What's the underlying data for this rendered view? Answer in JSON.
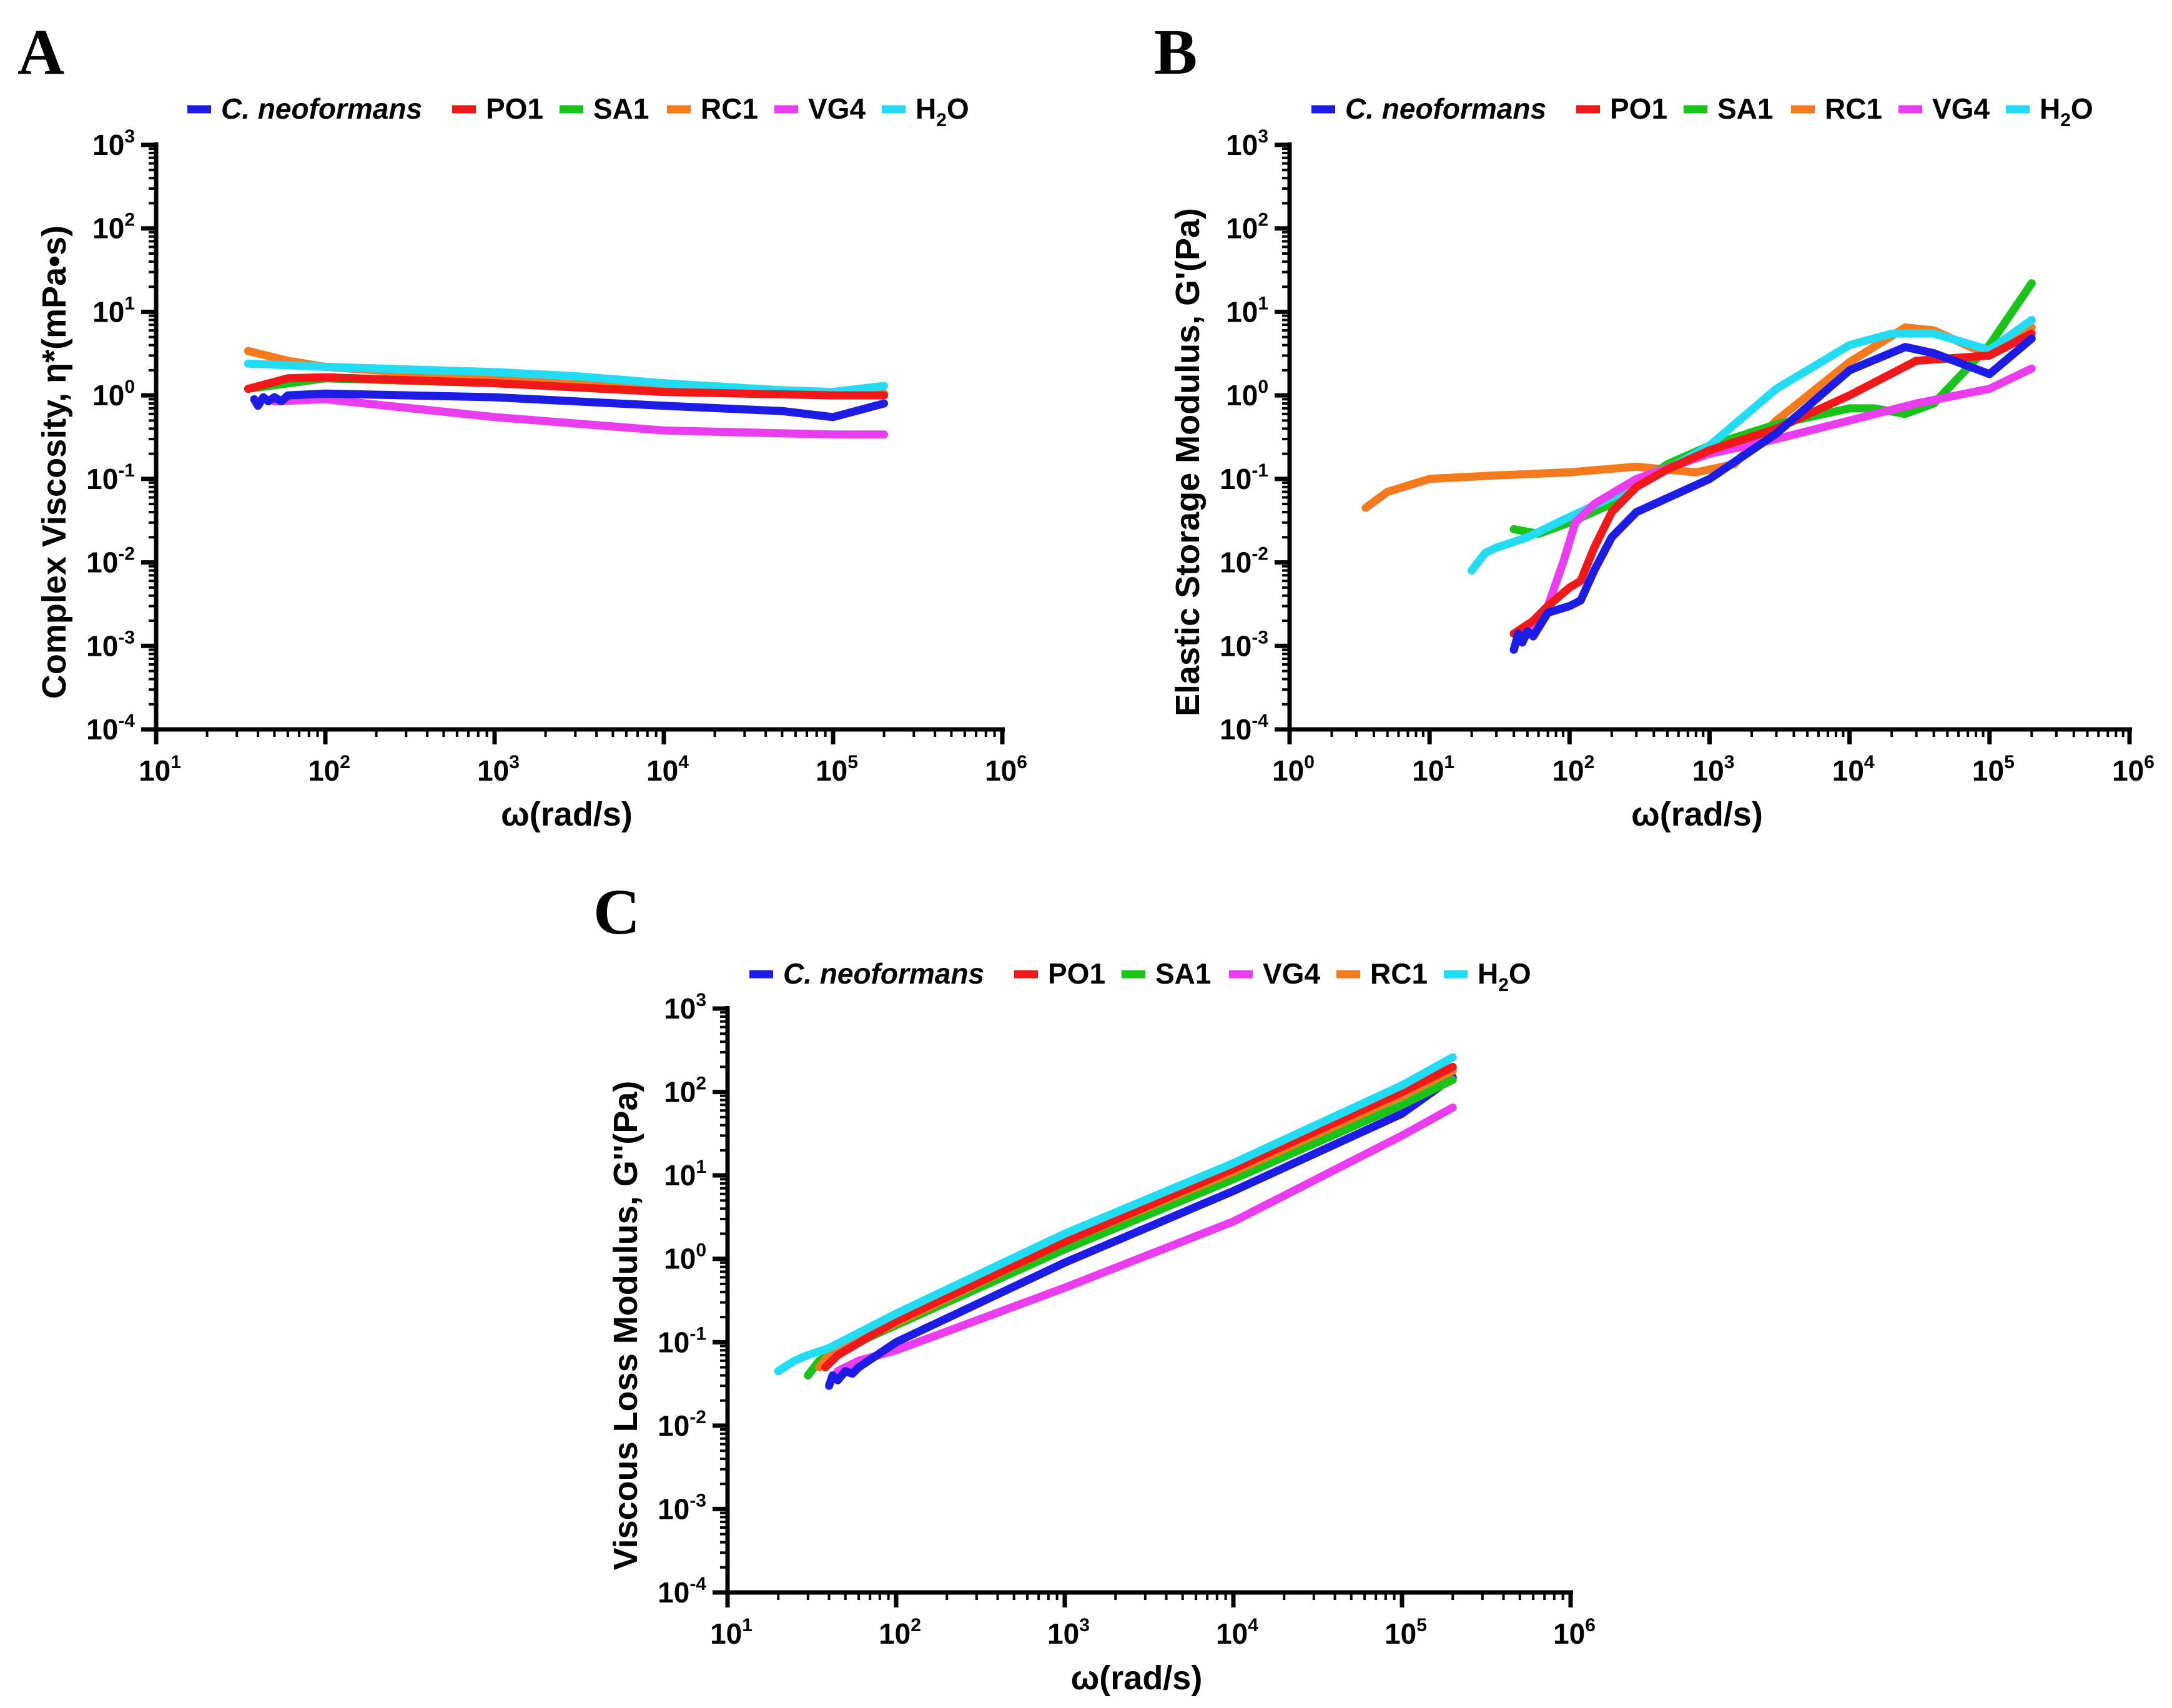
{
  "figure": {
    "colors": {
      "C. neoformans": "#1c1ce6",
      "PO1": "#f01818",
      "SA1": "#18c418",
      "RC1": "#f57a1e",
      "VG4": "#eb3df0",
      "H2O": "#21dcf2"
    }
  },
  "chart_data": [
    {
      "panel": "A",
      "type": "line",
      "xscale": "log",
      "yscale": "log",
      "xlabel": "ω(rad/s)",
      "ylabel": "Complex Viscosity, η*(mPa•s)",
      "xlim": [
        10,
        1000000
      ],
      "ylim": [
        0.0001,
        1000
      ],
      "xticks": [
        {
          "base": "10",
          "exp": "1"
        },
        {
          "base": "10",
          "exp": "2"
        },
        {
          "base": "10",
          "exp": "3"
        },
        {
          "base": "10",
          "exp": "4"
        },
        {
          "base": "10",
          "exp": "5"
        },
        {
          "base": "10",
          "exp": "6"
        }
      ],
      "yticks": [
        {
          "base": "10",
          "exp": "-4"
        },
        {
          "base": "10",
          "exp": "-3"
        },
        {
          "base": "10",
          "exp": "-2"
        },
        {
          "base": "10",
          "exp": "-1"
        },
        {
          "base": "10",
          "exp": "0"
        },
        {
          "base": "10",
          "exp": "1"
        },
        {
          "base": "10",
          "exp": "2"
        },
        {
          "base": "10",
          "exp": "3"
        }
      ],
      "legend": [
        {
          "key": "C. neoformans",
          "label": "C. neoformans",
          "italic": true
        },
        {
          "key": "PO1",
          "label": "PO1"
        },
        {
          "key": "SA1",
          "label": "SA1"
        },
        {
          "key": "RC1",
          "label": "RC1"
        },
        {
          "key": "VG4",
          "label": "VG4"
        },
        {
          "key": "H2O",
          "label": "H",
          "sub": "2",
          "tail": "O"
        }
      ],
      "series": [
        {
          "key": "SA1",
          "x": [
            35,
            100,
            1000,
            10000,
            100000,
            200000
          ],
          "y": [
            1.2,
            1.6,
            1.4,
            1.15,
            1.0,
            1.0
          ]
        },
        {
          "key": "RC1",
          "x": [
            35,
            60,
            100,
            1000,
            10000,
            100000,
            200000
          ],
          "y": [
            3.4,
            2.6,
            2.2,
            1.6,
            1.2,
            1.05,
            1.05
          ]
        },
        {
          "key": "H2O",
          "x": [
            35,
            100,
            1000,
            3000,
            10000,
            50000,
            100000,
            200000
          ],
          "y": [
            2.4,
            2.2,
            1.9,
            1.7,
            1.4,
            1.15,
            1.1,
            1.3
          ]
        },
        {
          "key": "VG4",
          "x": [
            50,
            100,
            1000,
            10000,
            100000,
            200000
          ],
          "y": [
            0.85,
            0.9,
            0.55,
            0.38,
            0.34,
            0.34
          ]
        },
        {
          "key": "C. neoformans",
          "x": [
            38,
            40,
            43,
            46,
            50,
            55,
            60,
            100,
            1000,
            10000,
            50000,
            100000,
            200000
          ],
          "y": [
            0.9,
            0.75,
            0.95,
            0.85,
            0.95,
            0.85,
            1.0,
            1.05,
            0.95,
            0.75,
            0.65,
            0.55,
            0.8
          ]
        },
        {
          "key": "PO1",
          "x": [
            35,
            60,
            100,
            1000,
            10000,
            100000,
            200000
          ],
          "y": [
            1.2,
            1.6,
            1.65,
            1.4,
            1.1,
            1.0,
            1.0
          ]
        }
      ]
    },
    {
      "panel": "B",
      "type": "line",
      "xscale": "log",
      "yscale": "log",
      "xlabel": "ω(rad/s)",
      "ylabel": "Elastic Storage Modulus, G'(Pa)",
      "xlim": [
        1,
        1000000
      ],
      "ylim": [
        0.0001,
        1000
      ],
      "xticks": [
        {
          "base": "10",
          "exp": "0"
        },
        {
          "base": "10",
          "exp": "1"
        },
        {
          "base": "10",
          "exp": "2"
        },
        {
          "base": "10",
          "exp": "3"
        },
        {
          "base": "10",
          "exp": "4"
        },
        {
          "base": "10",
          "exp": "5"
        },
        {
          "base": "10",
          "exp": "6"
        }
      ],
      "yticks": [
        {
          "base": "10",
          "exp": "-4"
        },
        {
          "base": "10",
          "exp": "-3"
        },
        {
          "base": "10",
          "exp": "-2"
        },
        {
          "base": "10",
          "exp": "-1"
        },
        {
          "base": "10",
          "exp": "0"
        },
        {
          "base": "10",
          "exp": "1"
        },
        {
          "base": "10",
          "exp": "2"
        },
        {
          "base": "10",
          "exp": "3"
        }
      ],
      "legend": [
        {
          "key": "C. neoformans",
          "label": "C. neoformans",
          "italic": true
        },
        {
          "key": "PO1",
          "label": "PO1"
        },
        {
          "key": "SA1",
          "label": "SA1"
        },
        {
          "key": "RC1",
          "label": "RC1"
        },
        {
          "key": "VG4",
          "label": "VG4"
        },
        {
          "key": "H2O",
          "label": "H",
          "sub": "2",
          "tail": "O"
        }
      ],
      "series": [
        {
          "key": "RC1",
          "x": [
            3.5,
            5,
            10,
            30,
            100,
            300,
            800,
            1500,
            3000,
            10000,
            25000,
            40000,
            100000,
            200000
          ],
          "y": [
            0.045,
            0.07,
            0.1,
            0.11,
            0.12,
            0.14,
            0.12,
            0.15,
            0.5,
            2.5,
            6.5,
            6.0,
            3.0,
            6.5
          ]
        },
        {
          "key": "SA1",
          "x": [
            40,
            60,
            100,
            200,
            500,
            1000,
            3000,
            10000,
            15000,
            25000,
            40000,
            100000,
            200000
          ],
          "y": [
            0.025,
            0.022,
            0.03,
            0.05,
            0.15,
            0.25,
            0.45,
            0.7,
            0.7,
            0.6,
            0.8,
            4.0,
            22
          ]
        },
        {
          "key": "H2O",
          "x": [
            20,
            25,
            30,
            50,
            100,
            200,
            500,
            1000,
            3000,
            10000,
            20000,
            40000,
            100000,
            200000
          ],
          "y": [
            0.008,
            0.013,
            0.015,
            0.02,
            0.035,
            0.06,
            0.13,
            0.25,
            1.2,
            4.0,
            5.5,
            5.5,
            3.5,
            8.0
          ]
        },
        {
          "key": "VG4",
          "x": [
            50,
            70,
            90,
            110,
            150,
            300,
            1000,
            3000,
            10000,
            30000,
            100000,
            200000
          ],
          "y": [
            0.0015,
            0.003,
            0.01,
            0.03,
            0.05,
            0.1,
            0.2,
            0.3,
            0.5,
            0.8,
            1.2,
            2.1
          ]
        },
        {
          "key": "PO1",
          "x": [
            40,
            55,
            70,
            100,
            120,
            150,
            200,
            300,
            500,
            1000,
            3000,
            10000,
            30000,
            100000,
            200000
          ],
          "y": [
            0.0014,
            0.002,
            0.003,
            0.005,
            0.006,
            0.015,
            0.04,
            0.08,
            0.13,
            0.22,
            0.4,
            1.0,
            2.6,
            3.0,
            5.5
          ]
        },
        {
          "key": "C. neoformans",
          "x": [
            40,
            43,
            46,
            50,
            55,
            70,
            100,
            120,
            150,
            200,
            300,
            1000,
            3000,
            10000,
            25000,
            40000,
            100000,
            200000
          ],
          "y": [
            0.0009,
            0.0014,
            0.0011,
            0.0015,
            0.0013,
            0.0025,
            0.003,
            0.0035,
            0.008,
            0.02,
            0.04,
            0.1,
            0.35,
            2.0,
            3.8,
            3.2,
            1.8,
            4.8
          ]
        }
      ]
    },
    {
      "panel": "C",
      "type": "line",
      "xscale": "log",
      "yscale": "log",
      "xlabel": "ω(rad/s)",
      "ylabel": "Viscous Loss Modulus, G''(Pa)",
      "xlim": [
        10,
        1000000
      ],
      "ylim": [
        0.0001,
        1000
      ],
      "xticks": [
        {
          "base": "10",
          "exp": "1"
        },
        {
          "base": "10",
          "exp": "2"
        },
        {
          "base": "10",
          "exp": "3"
        },
        {
          "base": "10",
          "exp": "4"
        },
        {
          "base": "10",
          "exp": "5"
        },
        {
          "base": "10",
          "exp": "6"
        }
      ],
      "yticks": [
        {
          "base": "10",
          "exp": "-4"
        },
        {
          "base": "10",
          "exp": "-3"
        },
        {
          "base": "10",
          "exp": "-2"
        },
        {
          "base": "10",
          "exp": "-1"
        },
        {
          "base": "10",
          "exp": "0"
        },
        {
          "base": "10",
          "exp": "1"
        },
        {
          "base": "10",
          "exp": "2"
        },
        {
          "base": "10",
          "exp": "3"
        }
      ],
      "legend": [
        {
          "key": "C. neoformans",
          "label": "C. neoformans",
          "italic": true
        },
        {
          "key": "PO1",
          "label": "PO1"
        },
        {
          "key": "SA1",
          "label": "SA1"
        },
        {
          "key": "VG4",
          "label": "VG4"
        },
        {
          "key": "RC1",
          "label": "RC1"
        },
        {
          "key": "H2O",
          "label": "H",
          "sub": "2",
          "tail": "O"
        }
      ],
      "series": [
        {
          "key": "VG4",
          "x": [
            45,
            60,
            100,
            1000,
            10000,
            100000,
            200000
          ],
          "y": [
            0.045,
            0.06,
            0.08,
            0.45,
            2.8,
            30,
            65
          ]
        },
        {
          "key": "C. neoformans",
          "x": [
            40,
            42,
            45,
            50,
            55,
            60,
            100,
            1000,
            10000,
            100000,
            200000
          ],
          "y": [
            0.03,
            0.04,
            0.035,
            0.045,
            0.042,
            0.05,
            0.1,
            0.9,
            6.5,
            55,
            150
          ]
        },
        {
          "key": "SA1",
          "x": [
            30,
            35,
            40,
            100,
            1000,
            10000,
            100000,
            200000
          ],
          "y": [
            0.04,
            0.06,
            0.07,
            0.16,
            1.3,
            9.0,
            70,
            140
          ]
        },
        {
          "key": "RC1",
          "x": [
            35,
            40,
            100,
            1000,
            10000,
            100000,
            200000
          ],
          "y": [
            0.05,
            0.07,
            0.17,
            1.6,
            11,
            90,
            180
          ]
        },
        {
          "key": "PO1",
          "x": [
            38,
            45,
            100,
            1000,
            10000,
            100000,
            200000
          ],
          "y": [
            0.05,
            0.07,
            0.18,
            1.6,
            12,
            100,
            200
          ]
        },
        {
          "key": "H2O",
          "x": [
            20,
            25,
            30,
            40,
            100,
            1000,
            10000,
            100000,
            200000
          ],
          "y": [
            0.045,
            0.06,
            0.07,
            0.085,
            0.22,
            2.0,
            14,
            120,
            260
          ]
        }
      ]
    }
  ]
}
